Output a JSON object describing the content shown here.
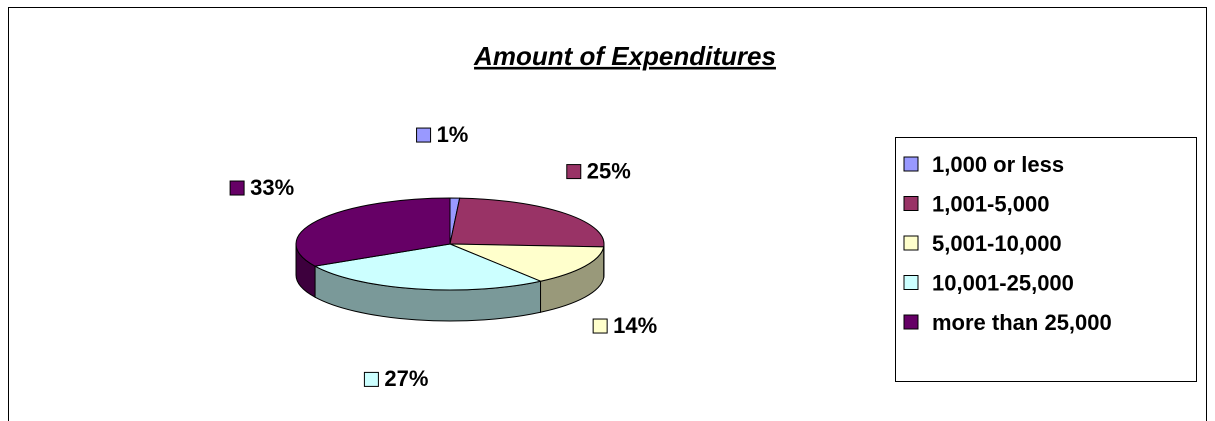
{
  "chart_data": {
    "type": "pie",
    "title": "Amount of Expenditures",
    "categories": [
      "1,000 or less",
      "1,001-5,000",
      "5,001-10,000",
      "10,001-25,000",
      "more than 25,000"
    ],
    "values": [
      1,
      25,
      14,
      27,
      33
    ],
    "value_labels": [
      "1%",
      "25%",
      "14%",
      "27%",
      "33%"
    ],
    "colors": [
      "#9999ff",
      "#993366",
      "#ffffcc",
      "#ccffff",
      "#660066"
    ],
    "legend": "right"
  }
}
